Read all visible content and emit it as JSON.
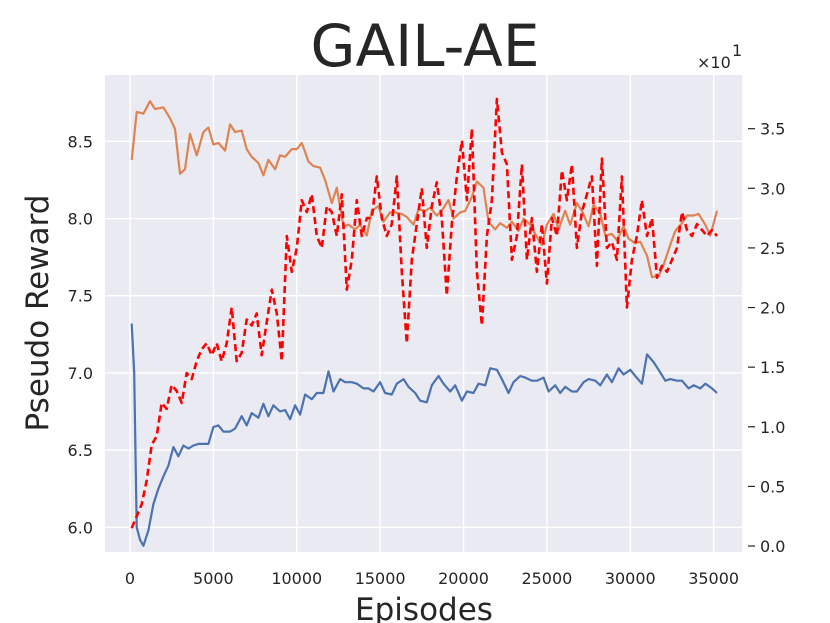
{
  "chart_data": {
    "type": "line",
    "title": "GAIL-AE",
    "xlabel": "Episodes",
    "ylabel": "Pseudo Reward",
    "xlim": [
      -1500,
      36700
    ],
    "ylim": [
      5.84,
      8.93
    ],
    "y2lim": [
      -0.05,
      3.95
    ],
    "y2_multiplier_label": "×10",
    "y2_multiplier_exp": "1",
    "xticks": [
      0,
      5000,
      10000,
      15000,
      20000,
      25000,
      30000,
      35000
    ],
    "yticks": [
      6.0,
      6.5,
      7.0,
      7.5,
      8.0,
      8.5
    ],
    "y2ticks": [
      0.0,
      0.5,
      1.0,
      1.5,
      2.0,
      2.5,
      3.0,
      3.5
    ],
    "xtick_labels": [
      "0",
      "5000",
      "10000",
      "15000",
      "20000",
      "25000",
      "30000",
      "35000"
    ],
    "ytick_labels": [
      "6.0",
      "6.5",
      "7.0",
      "7.5",
      "8.0",
      "8.5"
    ],
    "y2tick_labels": [
      "0.0",
      "0.5",
      "1.0",
      "1.5",
      "2.0",
      "2.5",
      "3.0",
      "3.5"
    ],
    "grid": true,
    "series": [
      {
        "color": "#4c72b0",
        "style": "solid",
        "axis": "left",
        "x": [
          100,
          250,
          400,
          600,
          800,
          1100,
          1400,
          1700,
          2000,
          2300,
          2600,
          2900,
          3200,
          3500,
          3800,
          4100,
          4400,
          4700,
          5000,
          5300,
          5600,
          6000,
          6300,
          6700,
          7000,
          7300,
          7700,
          8000,
          8300,
          8600,
          9000,
          9300,
          9600,
          9900,
          10200,
          10500,
          10900,
          11200,
          11600,
          11900,
          12200,
          12600,
          12900,
          13300,
          13600,
          14000,
          14300,
          14600,
          15000,
          15300,
          15700,
          16000,
          16400,
          16700,
          17100,
          17400,
          17800,
          18100,
          18500,
          18800,
          19200,
          19500,
          19900,
          20200,
          20600,
          20900,
          21300,
          21600,
          22000,
          22300,
          22700,
          23000,
          23400,
          23700,
          24100,
          24400,
          24800,
          25100,
          25500,
          25800,
          26100,
          26500,
          26800,
          27200,
          27500,
          27900,
          28200,
          28600,
          28900,
          29300,
          29600,
          30000,
          30300,
          30700,
          31000,
          31400,
          31700,
          32100,
          32400,
          32800,
          33100,
          33500,
          33800,
          34200,
          34500,
          34900,
          35200
        ],
        "values": [
          7.32,
          7.0,
          6.0,
          5.92,
          5.88,
          5.98,
          6.15,
          6.25,
          6.33,
          6.4,
          6.52,
          6.46,
          6.53,
          6.51,
          6.53,
          6.54,
          6.54,
          6.54,
          6.65,
          6.66,
          6.62,
          6.62,
          6.64,
          6.72,
          6.66,
          6.74,
          6.71,
          6.8,
          6.72,
          6.79,
          6.75,
          6.76,
          6.7,
          6.79,
          6.73,
          6.86,
          6.83,
          6.87,
          6.87,
          7.01,
          6.88,
          6.96,
          6.94,
          6.94,
          6.93,
          6.9,
          6.9,
          6.88,
          6.94,
          6.87,
          6.86,
          6.93,
          6.96,
          6.91,
          6.87,
          6.82,
          6.81,
          6.92,
          6.98,
          6.93,
          6.88,
          6.92,
          6.82,
          6.88,
          6.87,
          6.93,
          6.92,
          7.03,
          7.02,
          6.96,
          6.87,
          6.94,
          6.98,
          6.97,
          6.95,
          6.95,
          6.97,
          6.88,
          6.92,
          6.87,
          6.91,
          6.88,
          6.88,
          6.94,
          6.96,
          6.95,
          6.92,
          6.99,
          6.94,
          7.03,
          6.99,
          7.02,
          6.98,
          6.93,
          7.12,
          7.07,
          7.02,
          6.95,
          6.96,
          6.95,
          6.95,
          6.9,
          6.92,
          6.9,
          6.93,
          6.9,
          6.87
        ]
      },
      {
        "color": "#dd8452",
        "style": "solid",
        "axis": "left",
        "x": [
          100,
          400,
          800,
          1200,
          1500,
          2000,
          2400,
          2700,
          3000,
          3300,
          3600,
          4000,
          4400,
          4700,
          5000,
          5300,
          5700,
          6000,
          6300,
          6700,
          7000,
          7300,
          7700,
          8000,
          8300,
          8700,
          9000,
          9300,
          9700,
          10000,
          10300,
          10700,
          11000,
          11400,
          11700,
          12100,
          12400,
          12800,
          13100,
          13500,
          13800,
          14200,
          14500,
          14900,
          15200,
          15600,
          15900,
          16300,
          16600,
          17000,
          17300,
          17700,
          18000,
          18400,
          18700,
          19100,
          19400,
          19800,
          20100,
          20500,
          20800,
          21200,
          21500,
          21900,
          22200,
          22600,
          22900,
          23300,
          23600,
          24000,
          24300,
          24700,
          25000,
          25400,
          25700,
          26100,
          26400,
          26800,
          27100,
          27500,
          27800,
          28200,
          28500,
          28900,
          29200,
          29600,
          29900,
          30300,
          30600,
          31000,
          31300,
          31700,
          32000,
          32400,
          32700,
          33100,
          33400,
          33800,
          34100,
          34500,
          34800,
          35200
        ],
        "values": [
          8.38,
          8.69,
          8.68,
          8.76,
          8.71,
          8.72,
          8.65,
          8.58,
          8.29,
          8.32,
          8.55,
          8.41,
          8.56,
          8.59,
          8.48,
          8.49,
          8.44,
          8.61,
          8.56,
          8.57,
          8.45,
          8.4,
          8.36,
          8.28,
          8.38,
          8.32,
          8.41,
          8.4,
          8.45,
          8.45,
          8.49,
          8.37,
          8.34,
          8.33,
          8.25,
          8.1,
          8.2,
          7.95,
          7.96,
          7.93,
          7.96,
          7.89,
          8.05,
          8.08,
          7.98,
          8.04,
          8.04,
          8.03,
          8.01,
          7.96,
          8.06,
          8.05,
          8.07,
          8.02,
          8.05,
          8.12,
          8.0,
          8.04,
          8.05,
          8.14,
          8.24,
          8.2,
          7.98,
          7.93,
          7.97,
          7.94,
          7.98,
          7.92,
          8.0,
          7.96,
          7.9,
          7.83,
          7.96,
          8.03,
          7.93,
          8.05,
          7.96,
          8.1,
          8.05,
          7.95,
          8.09,
          8.03,
          7.89,
          7.9,
          7.86,
          7.95,
          7.87,
          7.84,
          7.85,
          7.76,
          7.62,
          7.63,
          7.7,
          7.83,
          7.92,
          7.97,
          8.02,
          8.02,
          8.03,
          7.96,
          7.89,
          8.05
        ]
      },
      {
        "color": "#ff0000",
        "style": "dashed",
        "axis": "right",
        "x": [
          100,
          400,
          700,
          1000,
          1300,
          1600,
          1900,
          2200,
          2500,
          2800,
          3100,
          3400,
          3700,
          4000,
          4300,
          4600,
          4900,
          5200,
          5500,
          5800,
          6100,
          6400,
          6700,
          7000,
          7300,
          7600,
          7900,
          8200,
          8500,
          8800,
          9100,
          9400,
          9700,
          10000,
          10300,
          10600,
          10900,
          11200,
          11500,
          11800,
          12100,
          12400,
          12700,
          13000,
          13300,
          13600,
          13900,
          14200,
          14500,
          14800,
          15100,
          15400,
          15700,
          16000,
          16300,
          16600,
          16900,
          17200,
          17500,
          17800,
          18100,
          18400,
          18700,
          19000,
          19300,
          19600,
          19900,
          20200,
          20500,
          20800,
          21100,
          21400,
          21700,
          22000,
          22300,
          22600,
          22900,
          23200,
          23500,
          23800,
          24100,
          24400,
          24700,
          25000,
          25300,
          25600,
          25900,
          26200,
          26500,
          26800,
          27100,
          27400,
          27700,
          28000,
          28300,
          28600,
          28900,
          29200,
          29500,
          29800,
          30100,
          30400,
          30700,
          31000,
          31300,
          31600,
          31900,
          32200,
          32500,
          32800,
          33100,
          33400,
          33700,
          34000,
          34300,
          34600,
          34900,
          35200
        ],
        "values": [
          0.15,
          0.25,
          0.35,
          0.55,
          0.85,
          0.92,
          1.2,
          1.15,
          1.35,
          1.3,
          1.2,
          1.45,
          1.4,
          1.55,
          1.65,
          1.7,
          1.6,
          1.7,
          1.55,
          1.7,
          2.0,
          1.55,
          1.62,
          1.9,
          1.85,
          1.95,
          1.6,
          1.88,
          2.15,
          1.95,
          1.55,
          2.6,
          2.3,
          2.5,
          2.9,
          2.8,
          2.95,
          2.6,
          2.5,
          2.85,
          2.8,
          2.6,
          2.95,
          2.15,
          2.4,
          2.9,
          2.6,
          2.75,
          2.75,
          3.1,
          2.75,
          2.6,
          2.7,
          3.1,
          2.3,
          1.7,
          2.4,
          2.7,
          3.0,
          2.5,
          2.85,
          3.05,
          2.75,
          2.1,
          2.7,
          3.1,
          3.4,
          2.9,
          3.5,
          2.3,
          1.85,
          2.6,
          2.9,
          3.75,
          3.3,
          3.2,
          2.4,
          2.6,
          3.2,
          2.4,
          2.75,
          2.3,
          2.7,
          2.2,
          2.75,
          2.6,
          3.15,
          2.9,
          3.2,
          2.5,
          2.8,
          2.95,
          3.1,
          2.35,
          3.25,
          2.5,
          2.55,
          2.4,
          3.1,
          2.0,
          2.4,
          2.6,
          2.9,
          2.6,
          2.75,
          2.25,
          2.35,
          2.3,
          2.4,
          2.5,
          2.8,
          2.65,
          2.6,
          2.7,
          2.65,
          2.6,
          2.65,
          2.6
        ]
      }
    ]
  }
}
